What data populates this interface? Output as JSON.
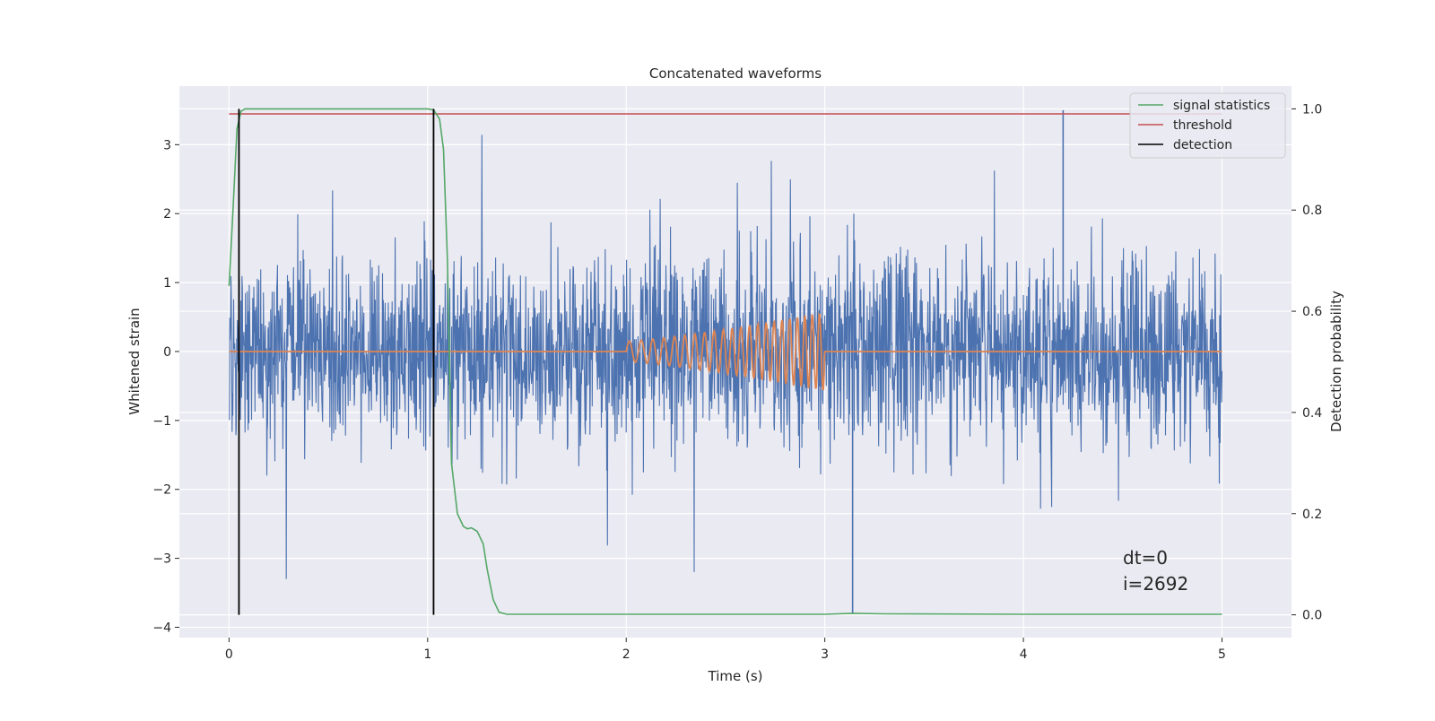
{
  "chart_data": {
    "type": "line",
    "title": "Concatenated waveforms",
    "xlabel": "Time (s)",
    "ylabel_left": "Whitened strain",
    "ylabel_right": "Detection probability",
    "xlim": [
      -0.25,
      5.35
    ],
    "ylim_left": [
      -4.15,
      3.85
    ],
    "ylim_right": [
      -0.045,
      1.045
    ],
    "x_ticks": [
      0,
      1,
      2,
      3,
      4,
      5
    ],
    "x_tick_labels": [
      "0",
      "1",
      "2",
      "3",
      "4",
      "5"
    ],
    "y_left_ticks": [
      -4,
      -3,
      -2,
      -1,
      0,
      1,
      2,
      3
    ],
    "y_left_tick_labels": [
      "−4",
      "−3",
      "−2",
      "−1",
      "0",
      "1",
      "2",
      "3"
    ],
    "y_right_ticks": [
      0.0,
      0.2,
      0.4,
      0.6,
      0.8,
      1.0
    ],
    "y_right_tick_labels": [
      "0.0",
      "0.2",
      "0.4",
      "0.6",
      "0.8",
      "1.0"
    ],
    "grid": true,
    "background_color": "#eaeaf2",
    "legend_position": "top-right",
    "annotations": [
      "dt=0",
      "i=2692"
    ],
    "series": [
      {
        "name": "",
        "axis": "left",
        "color": "#4c72b0",
        "kind": "noise",
        "x_range": [
          0,
          5
        ],
        "noise_std": 0.65,
        "note_peaks": {
          "max": 3.5,
          "min": -3.8
        }
      },
      {
        "name": "",
        "axis": "left",
        "color": "#dd8452",
        "kind": "chirp",
        "x_range": [
          0,
          5
        ],
        "chirp_start": 2.0,
        "chirp_end": 3.0,
        "amp_start": 0.15,
        "amp_end": 0.58,
        "f_start": 16,
        "f_end": 28
      },
      {
        "name": "signal statistics",
        "axis": "right",
        "color": "#55a868",
        "x": [
          0,
          0.02,
          0.04,
          0.06,
          0.08,
          0.1,
          0.2,
          0.5,
          0.9,
          1.0,
          1.03,
          1.06,
          1.08,
          1.1,
          1.12,
          1.15,
          1.18,
          1.2,
          1.22,
          1.25,
          1.28,
          1.3,
          1.33,
          1.36,
          1.4,
          2.0,
          2.5,
          3.0,
          3.14,
          3.3,
          4.0,
          5.0
        ],
        "y": [
          0.65,
          0.8,
          0.96,
          0.995,
          1.0,
          1.0,
          1.0,
          1.0,
          1.0,
          1.0,
          0.998,
          0.98,
          0.92,
          0.7,
          0.3,
          0.2,
          0.175,
          0.17,
          0.172,
          0.165,
          0.14,
          0.09,
          0.03,
          0.005,
          0.001,
          0.001,
          0.001,
          0.001,
          0.003,
          0.002,
          0.001,
          0.001
        ]
      },
      {
        "name": "threshold",
        "axis": "right",
        "color": "#c44e52",
        "x": [
          0,
          5
        ],
        "y": [
          0.99,
          0.99
        ]
      },
      {
        "name": "detection",
        "axis": "right",
        "color": "#000000",
        "kind": "vlines",
        "x": [
          0.05,
          1.03
        ],
        "y_range": [
          0.0,
          1.0
        ]
      }
    ]
  }
}
